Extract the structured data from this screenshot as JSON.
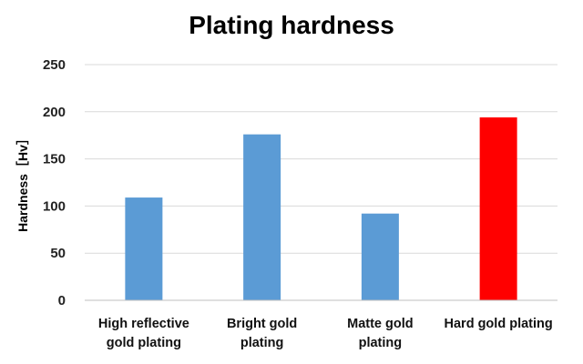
{
  "chart_data": {
    "type": "bar",
    "title": "Plating hardness",
    "ylabel": "Hardness［Hv］",
    "xlabel": "",
    "categories": [
      [
        "High reflective",
        "gold plating"
      ],
      [
        "Bright gold",
        "plating"
      ],
      [
        "Matte gold",
        "plating"
      ],
      [
        "Hard gold plating"
      ]
    ],
    "values": [
      109,
      176,
      92,
      194
    ],
    "colors": [
      "#5b9bd5",
      "#5b9bd5",
      "#5b9bd5",
      "#ff0000"
    ],
    "ylim": [
      0,
      250
    ],
    "yticks": [
      "0",
      "50",
      "100",
      "150",
      "200",
      "250"
    ],
    "grid": true,
    "gridColor": "#d9d9d9"
  }
}
